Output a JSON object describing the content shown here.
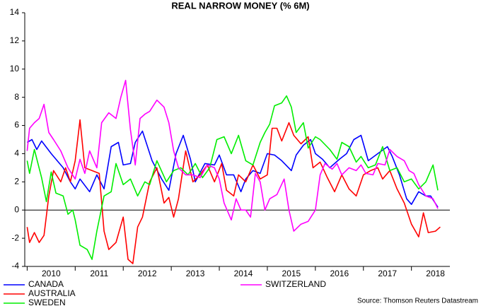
{
  "chart_data": {
    "type": "line",
    "title": "REAL NARROW MONEY (% 6M)",
    "source": "Source: Thomson Reuters Datastream",
    "xlim": [
      2009.95,
      2018.8
    ],
    "ylim": [
      -4,
      14
    ],
    "yticks": [
      -4,
      -2,
      0,
      2,
      4,
      6,
      8,
      10,
      12,
      14
    ],
    "xticks": [
      {
        "value": 2010.5,
        "label": "2010"
      },
      {
        "value": 2011.5,
        "label": "2011"
      },
      {
        "value": 2012.5,
        "label": "2012"
      },
      {
        "value": 2013.5,
        "label": "2013"
      },
      {
        "value": 2014.5,
        "label": "2014"
      },
      {
        "value": 2015.5,
        "label": "2015"
      },
      {
        "value": 2016.5,
        "label": "2016"
      },
      {
        "value": 2017.5,
        "label": "2017"
      },
      {
        "value": 2018.5,
        "label": "2018"
      }
    ],
    "series": [
      {
        "name": "CANADA",
        "color": "#0000ff",
        "x": [
          2010.0,
          2010.1,
          2010.2,
          2010.3,
          2010.5,
          2010.75,
          2010.9,
          2011.0,
          2011.1,
          2011.3,
          2011.45,
          2011.6,
          2011.75,
          2011.9,
          2012.0,
          2012.15,
          2012.25,
          2012.4,
          2012.6,
          2012.8,
          2012.95,
          2013.1,
          2013.25,
          2013.4,
          2013.5,
          2013.7,
          2013.9,
          2014.0,
          2014.15,
          2014.3,
          2014.45,
          2014.55,
          2014.7,
          2014.85,
          2015.0,
          2015.15,
          2015.3,
          2015.5,
          2015.6,
          2015.75,
          2015.9,
          2016.0,
          2016.15,
          2016.3,
          2016.5,
          2016.65,
          2016.8,
          2016.95,
          2017.1,
          2017.3,
          2017.5,
          2017.6,
          2017.75,
          2017.9,
          2018.0,
          2018.15,
          2018.3,
          2018.4,
          2018.55
        ],
        "values": [
          4.8,
          5.0,
          4.3,
          4.9,
          4.0,
          3.0,
          2.0,
          1.5,
          2.2,
          1.3,
          2.5,
          1.5,
          4.5,
          4.8,
          3.2,
          3.3,
          4.8,
          5.6,
          3.5,
          2.2,
          1.4,
          4.0,
          5.3,
          3.6,
          2.0,
          3.3,
          3.2,
          3.9,
          2.5,
          2.5,
          1.3,
          2.2,
          2.8,
          2.6,
          4.0,
          3.9,
          3.5,
          2.8,
          3.9,
          4.6,
          5.0,
          4.0,
          3.6,
          3.0,
          3.6,
          4.0,
          5.0,
          5.3,
          3.5,
          4.0,
          4.5,
          3.8,
          2.5,
          0.8,
          0.4,
          1.3,
          1.0,
          1.0,
          0.2
        ]
      },
      {
        "name": "AUSTRALIA",
        "color": "#ff0000",
        "x": [
          2010.0,
          2010.05,
          2010.15,
          2010.25,
          2010.35,
          2010.45,
          2010.55,
          2010.7,
          2010.8,
          2010.9,
          2011.0,
          2011.1,
          2011.2,
          2011.35,
          2011.5,
          2011.6,
          2011.7,
          2011.85,
          2012.0,
          2012.1,
          2012.2,
          2012.3,
          2012.4,
          2012.55,
          2012.7,
          2012.85,
          2012.95,
          2013.05,
          2013.15,
          2013.3,
          2013.45,
          2013.6,
          2013.75,
          2013.9,
          2014.05,
          2014.15,
          2014.3,
          2014.4,
          2014.55,
          2014.7,
          2014.85,
          2015.0,
          2015.1,
          2015.2,
          2015.3,
          2015.45,
          2015.55,
          2015.7,
          2015.85,
          2015.95,
          2016.1,
          2016.25,
          2016.4,
          2016.55,
          2016.7,
          2016.85,
          2017.0,
          2017.15,
          2017.3,
          2017.4,
          2017.55,
          2017.7,
          2017.85,
          2018.0,
          2018.15,
          2018.25,
          2018.35,
          2018.5,
          2018.6
        ],
        "values": [
          -1.2,
          -2.3,
          -1.6,
          -2.3,
          -1.8,
          1.0,
          2.8,
          2.0,
          3.0,
          2.0,
          3.5,
          6.4,
          3.0,
          2.8,
          2.6,
          -1.5,
          -2.8,
          -2.3,
          -0.5,
          -3.5,
          -3.8,
          -1.2,
          -0.5,
          2.0,
          3.0,
          0.5,
          0.9,
          -0.5,
          0.8,
          4.2,
          2.0,
          2.5,
          3.2,
          2.0,
          3.3,
          1.4,
          1.0,
          2.5,
          2.0,
          3.2,
          2.2,
          2.5,
          5.8,
          5.8,
          4.9,
          6.2,
          5.3,
          4.7,
          5.2,
          3.0,
          3.4,
          2.3,
          1.3,
          2.5,
          1.5,
          1.0,
          2.5,
          2.8,
          3.0,
          2.2,
          2.8,
          1.5,
          0.5,
          -1.0,
          -1.9,
          -0.2,
          -1.6,
          -1.5,
          -1.2
        ]
      },
      {
        "name": "SWEDEN",
        "color": "#00ee00",
        "x": [
          2010.0,
          2010.05,
          2010.15,
          2010.3,
          2010.4,
          2010.5,
          2010.6,
          2010.75,
          2010.85,
          2010.95,
          2011.0,
          2011.1,
          2011.25,
          2011.35,
          2011.45,
          2011.6,
          2011.75,
          2011.85,
          2012.0,
          2012.15,
          2012.3,
          2012.45,
          2012.55,
          2012.7,
          2012.9,
          2013.05,
          2013.2,
          2013.35,
          2013.5,
          2013.65,
          2013.8,
          2013.95,
          2014.1,
          2014.25,
          2014.4,
          2014.55,
          2014.7,
          2014.85,
          2014.95,
          2015.05,
          2015.15,
          2015.3,
          2015.4,
          2015.5,
          2015.6,
          2015.75,
          2015.85,
          2016.0,
          2016.1,
          2016.3,
          2016.45,
          2016.55,
          2016.7,
          2016.85,
          2016.95,
          2017.1,
          2017.25,
          2017.4,
          2017.55,
          2017.7,
          2017.85,
          2018.0,
          2018.15,
          2018.3,
          2018.45,
          2018.55
        ],
        "values": [
          3.5,
          2.6,
          4.3,
          2.3,
          0.6,
          2.7,
          1.2,
          1.0,
          -0.3,
          0.0,
          -0.7,
          -2.5,
          -2.8,
          -3.5,
          -1.5,
          1.0,
          1.3,
          3.3,
          1.8,
          2.2,
          1.0,
          2.0,
          1.8,
          3.5,
          2.0,
          2.8,
          3.0,
          2.5,
          3.3,
          2.3,
          3.0,
          5.0,
          5.2,
          4.0,
          5.3,
          3.5,
          3.2,
          4.8,
          5.5,
          6.1,
          7.4,
          7.6,
          8.1,
          7.3,
          5.5,
          6.2,
          4.4,
          5.2,
          5.0,
          4.3,
          3.6,
          4.8,
          4.5,
          3.4,
          3.8,
          3.0,
          3.2,
          4.5,
          2.8,
          3.0,
          2.0,
          2.2,
          1.5,
          2.0,
          3.2,
          1.4
        ]
      },
      {
        "name": "SWITZERLAND",
        "color": "#ff00ff",
        "x": [
          2010.0,
          2010.05,
          2010.15,
          2010.25,
          2010.35,
          2010.45,
          2010.55,
          2010.7,
          2010.85,
          2011.0,
          2011.1,
          2011.2,
          2011.3,
          2011.45,
          2011.55,
          2011.7,
          2011.85,
          2011.95,
          2012.05,
          2012.15,
          2012.25,
          2012.35,
          2012.45,
          2012.55,
          2012.7,
          2012.85,
          2012.95,
          2013.05,
          2013.15,
          2013.3,
          2013.45,
          2013.6,
          2013.75,
          2013.9,
          2014.0,
          2014.1,
          2014.25,
          2014.35,
          2014.45,
          2014.55,
          2014.65,
          2014.75,
          2014.85,
          2014.95,
          2015.05,
          2015.2,
          2015.35,
          2015.45,
          2015.55,
          2015.7,
          2015.85,
          2016.0,
          2016.1,
          2016.2,
          2016.35,
          2016.45,
          2016.55,
          2016.7,
          2016.85,
          2016.95,
          2017.05,
          2017.2,
          2017.3,
          2017.45,
          2017.55,
          2017.7,
          2017.85,
          2017.95,
          2018.05,
          2018.15,
          2018.3,
          2018.45,
          2018.55
        ],
        "values": [
          4.2,
          5.8,
          6.2,
          6.5,
          7.5,
          5.5,
          5.0,
          4.2,
          3.0,
          2.2,
          3.6,
          2.6,
          4.2,
          3.0,
          6.2,
          6.9,
          6.5,
          8.0,
          9.2,
          5.7,
          3.2,
          6.5,
          6.8,
          7.0,
          7.8,
          7.3,
          6.2,
          4.2,
          3.0,
          2.5,
          2.5,
          2.3,
          3.2,
          3.0,
          2.2,
          0.5,
          -0.7,
          0.8,
          0.0,
          0.0,
          -0.5,
          2.6,
          2.0,
          0.0,
          0.8,
          1.1,
          2.2,
          0.0,
          -1.5,
          -1.0,
          -0.8,
          0.0,
          2.5,
          3.3,
          2.9,
          3.3,
          2.5,
          3.0,
          2.8,
          3.2,
          2.6,
          2.5,
          3.3,
          3.2,
          4.3,
          3.8,
          3.5,
          2.8,
          2.6,
          1.8,
          1.0,
          0.8,
          0.1
        ]
      }
    ]
  }
}
